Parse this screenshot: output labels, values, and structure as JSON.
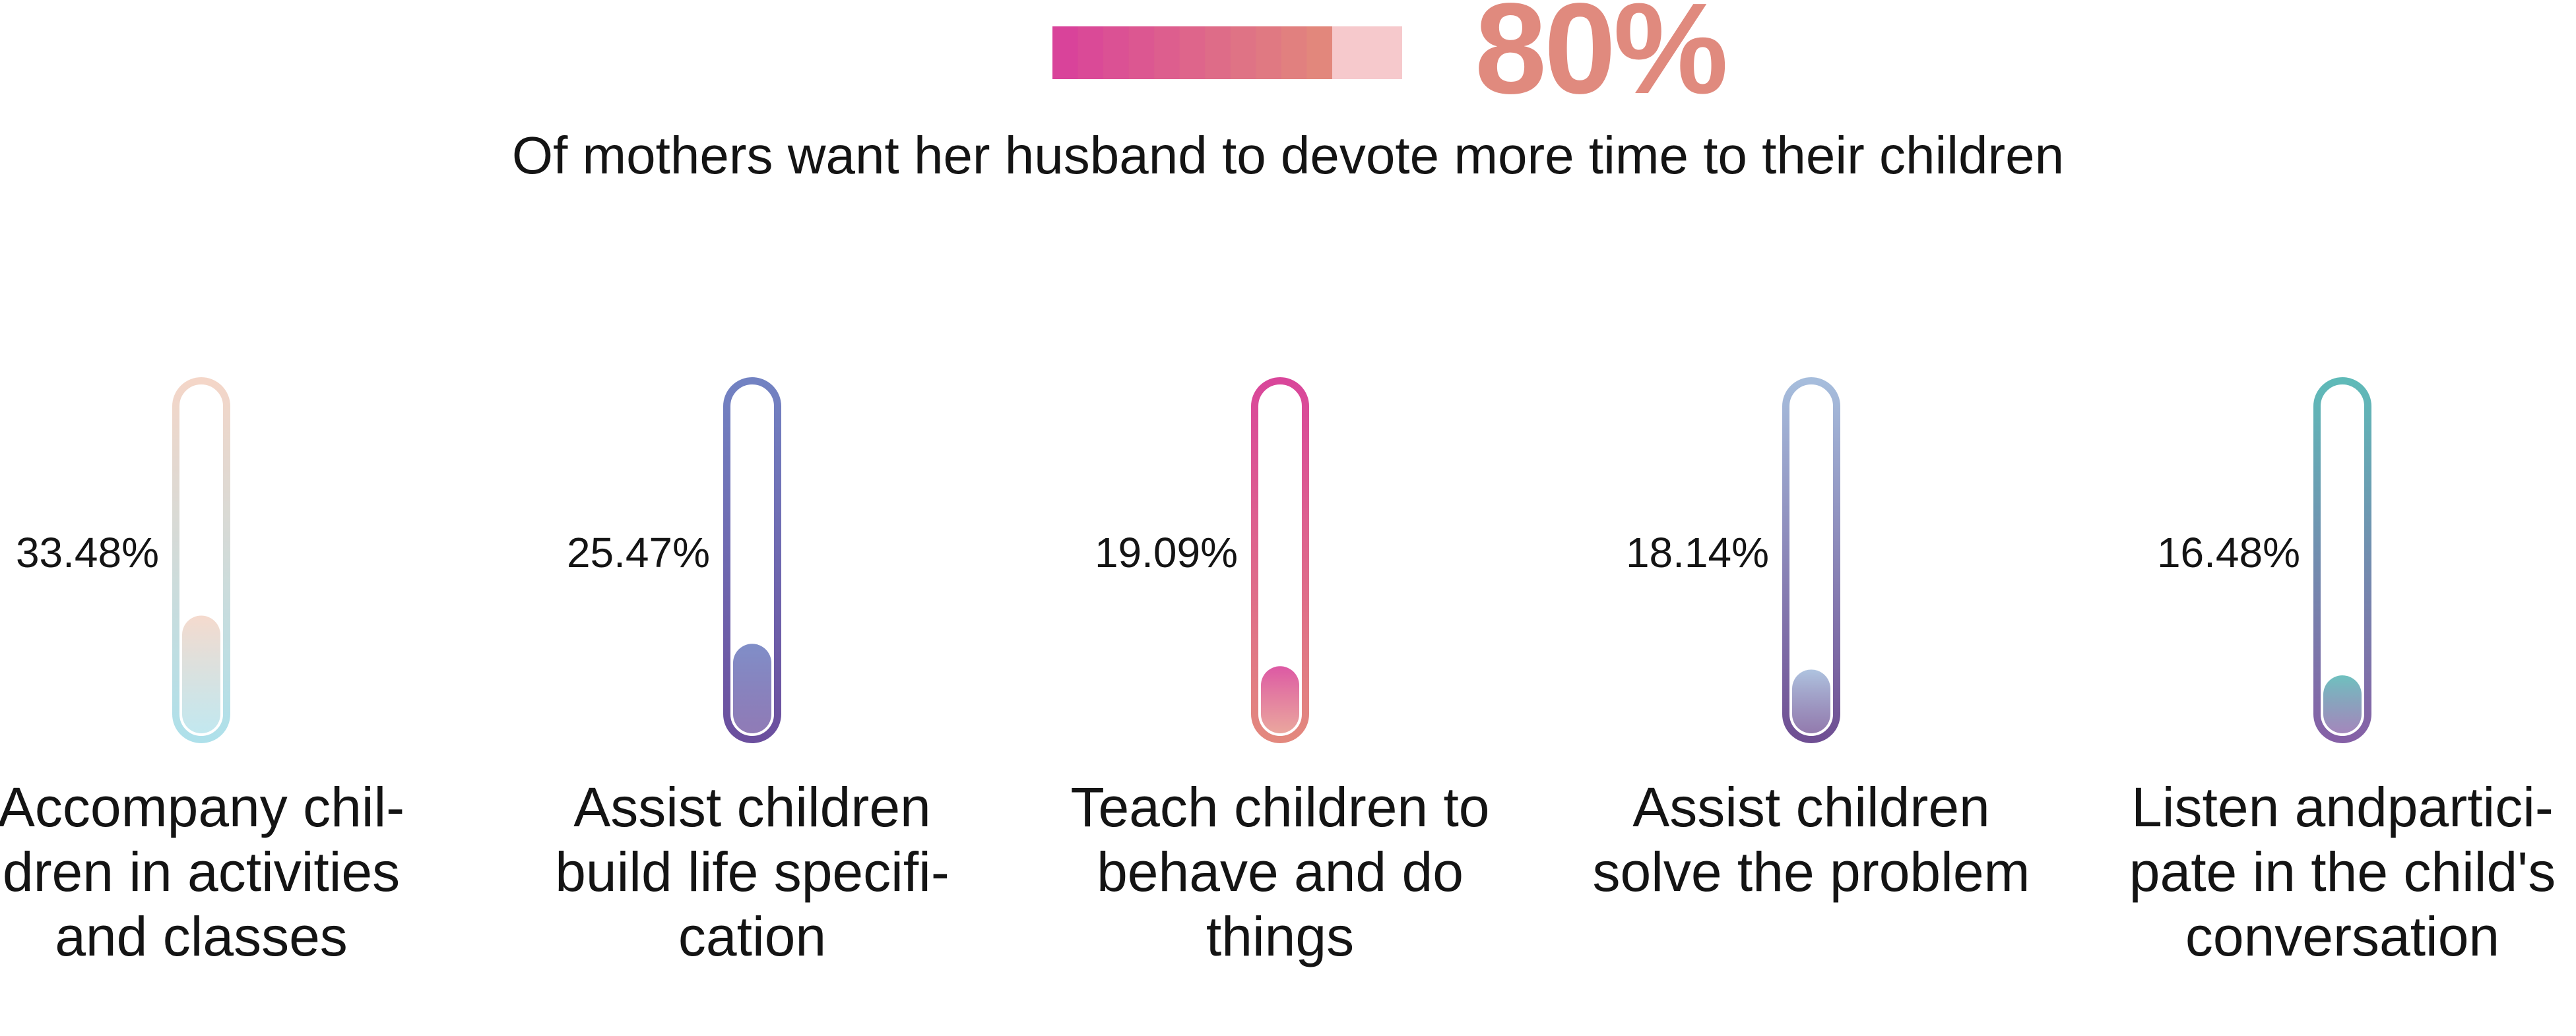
{
  "headline": {
    "value": "80%",
    "caption": "Of mothers want her husband to devote more time to their children",
    "fraction": 0.8,
    "colors": {
      "start": "#d9439a",
      "end": "#e2877c",
      "remainder": "#f6c9cc"
    }
  },
  "chart_data": {
    "type": "bar",
    "title": "",
    "categories": [
      "Accompany children in activities and classes",
      "Assist children build life specification",
      "Teach children to behave and do things",
      "Assist children solve the problem",
      "Listen andparticipate in the child's conversation"
    ],
    "values": [
      33.48,
      25.47,
      19.09,
      18.14,
      16.48
    ],
    "ylim": [
      0,
      100
    ],
    "grid": false,
    "items": [
      {
        "value": 33.48,
        "value_label": "33.48%",
        "label_lines": [
          "Accompany chil-",
          "dren in activities",
          "and classes"
        ],
        "colors": {
          "top": "#f4d6c8",
          "bottom": "#aee0ea"
        }
      },
      {
        "value": 25.47,
        "value_label": "25.47%",
        "label_lines": [
          "Assist children",
          "build life specifi-",
          "cation"
        ],
        "colors": {
          "top": "#7282c2",
          "bottom": "#6b4f9e"
        }
      },
      {
        "value": 19.09,
        "value_label": "19.09%",
        "label_lines": [
          "Teach children to",
          "behave and do",
          "things"
        ],
        "colors": {
          "top": "#d9469a",
          "bottom": "#e3887e"
        }
      },
      {
        "value": 18.14,
        "value_label": "18.14%",
        "label_lines": [
          "Assist children",
          "solve the problem"
        ],
        "colors": {
          "top": "#a6bddc",
          "bottom": "#6f4f93"
        }
      },
      {
        "value": 16.48,
        "value_label": "16.48%",
        "label_lines": [
          "Listen andpartici-",
          "pate in the child's",
          "conversation"
        ],
        "colors": {
          "top": "#5fbab8",
          "bottom": "#8560a6"
        }
      }
    ]
  }
}
